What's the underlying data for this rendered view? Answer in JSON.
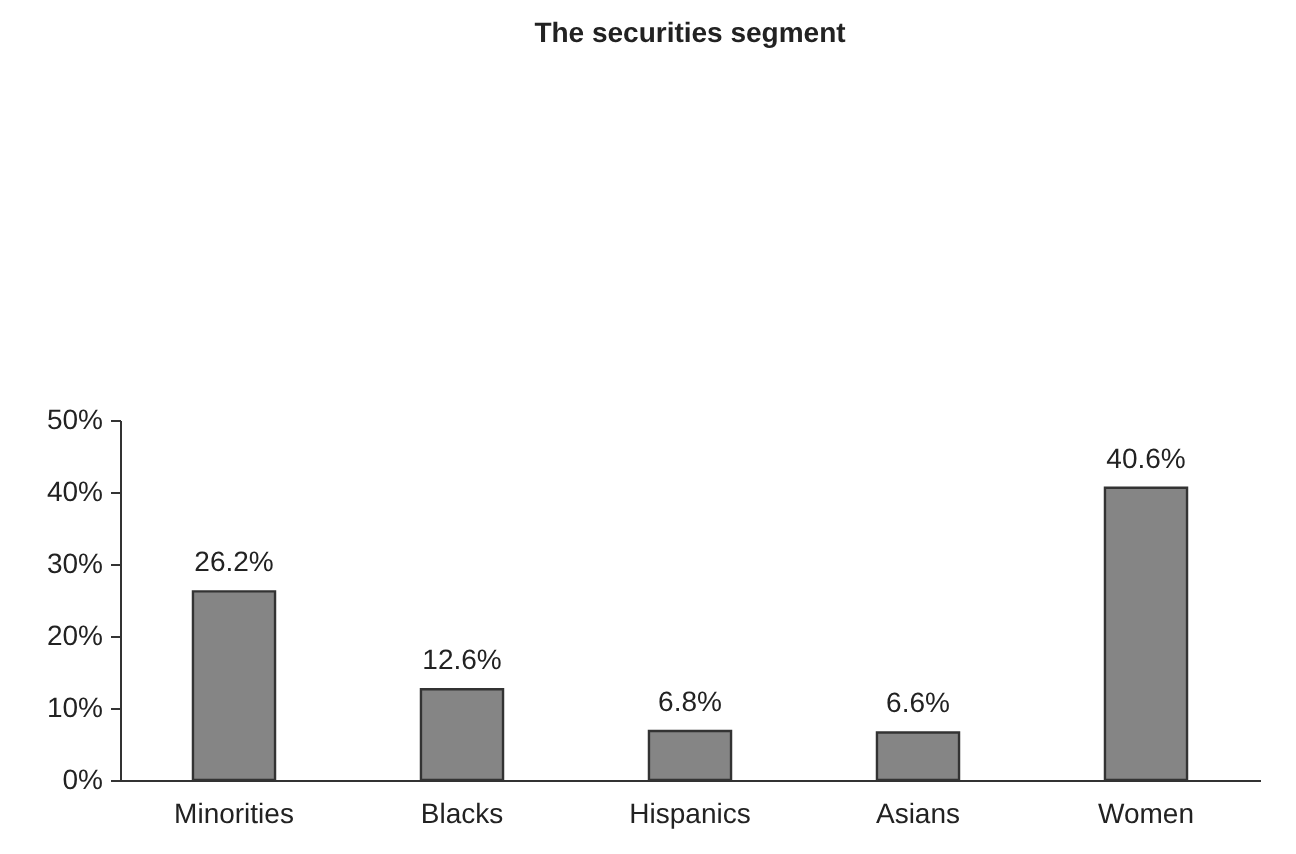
{
  "chart_data": {
    "type": "bar",
    "title": "The securities segment",
    "categories": [
      "Minorities",
      "Blacks",
      "Hispanics",
      "Asians",
      "Women"
    ],
    "values": [
      26.2,
      12.6,
      6.8,
      6.6,
      40.6
    ],
    "value_labels": [
      "26.2%",
      "12.6%",
      "6.8%",
      "6.6%",
      "40.6%"
    ],
    "color": "#858585",
    "ylim": [
      0,
      50
    ],
    "yticks": [
      {
        "value": 0,
        "label": "0%"
      },
      {
        "value": 10,
        "label": "10%"
      },
      {
        "value": 20,
        "label": "20%"
      },
      {
        "value": 30,
        "label": "30%"
      },
      {
        "value": 40,
        "label": "40%"
      },
      {
        "value": 50,
        "label": "50%"
      }
    ],
    "grid": false
  }
}
